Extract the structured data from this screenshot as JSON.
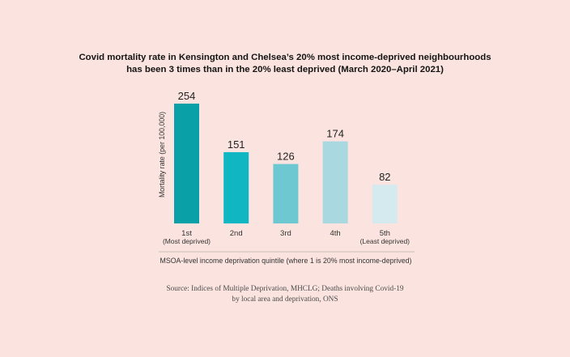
{
  "chart_data": {
    "type": "bar",
    "title": [
      "Covid mortality rate in Kensington and Chelsea’s 20% most income-deprived neighbourhoods",
      "has been 3 times than in the 20% least deprived (March 2020–April 2021)"
    ],
    "categories": [
      "1st",
      "2nd",
      "3rd",
      "4th",
      "5th"
    ],
    "category_sublabels": [
      "(Most deprived)",
      "",
      "",
      "",
      "(Least deprived)"
    ],
    "values": [
      254,
      151,
      126,
      174,
      82
    ],
    "data_labels": [
      "254",
      "151",
      "126",
      "174",
      "82"
    ],
    "bar_colors": [
      "#0aa0a8",
      "#10b6c2",
      "#6ec8d2",
      "#a9d8e0",
      "#d5eaef"
    ],
    "ylabel": "Mortality rate (per 100,000)",
    "xlabel": "MSOA-level income deprivation quintile (where 1 is 20% most income-deprived)",
    "ylim": [
      0,
      254
    ],
    "grid": false,
    "legend": "none"
  },
  "source": [
    "Source: Indices of Multiple Deprivation, MHCLG; Deaths involving Covid-19",
    "by local area and deprivation, ONS"
  ],
  "colors": {
    "background": "#fbe4df",
    "axis_line": "#b9b0ad"
  }
}
